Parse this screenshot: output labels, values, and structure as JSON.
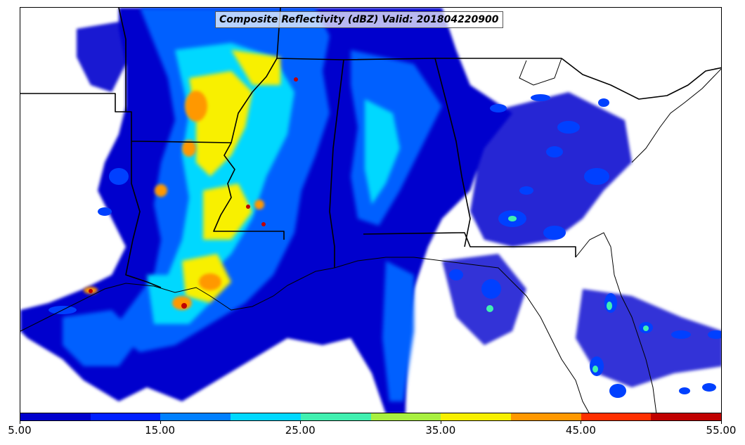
{
  "map": {
    "title": "Composite Reflectivity (dBZ) Valid: 201804220900",
    "field": "composite-reflectivity",
    "colors": {
      "land_background": "#ffffff",
      "boundaries": "#000000"
    }
  },
  "colorbar": {
    "segments": [
      {
        "range": [
          5,
          10
        ],
        "color": "#0000cd"
      },
      {
        "range": [
          10,
          15
        ],
        "color": "#0020ff"
      },
      {
        "range": [
          15,
          20
        ],
        "color": "#0080ff"
      },
      {
        "range": [
          20,
          25
        ],
        "color": "#00d8ff"
      },
      {
        "range": [
          25,
          30
        ],
        "color": "#40f0b0"
      },
      {
        "range": [
          30,
          35
        ],
        "color": "#a8f040"
      },
      {
        "range": [
          35,
          40
        ],
        "color": "#f8f000"
      },
      {
        "range": [
          40,
          45
        ],
        "color": "#ff9800"
      },
      {
        "range": [
          45,
          50
        ],
        "color": "#ff3000"
      },
      {
        "range": [
          50,
          55
        ],
        "color": "#c00000"
      }
    ],
    "tick_labels": [
      "5.00",
      "15.00",
      "25.00",
      "35.00",
      "45.00",
      "55.00"
    ],
    "range": [
      5,
      55
    ]
  }
}
